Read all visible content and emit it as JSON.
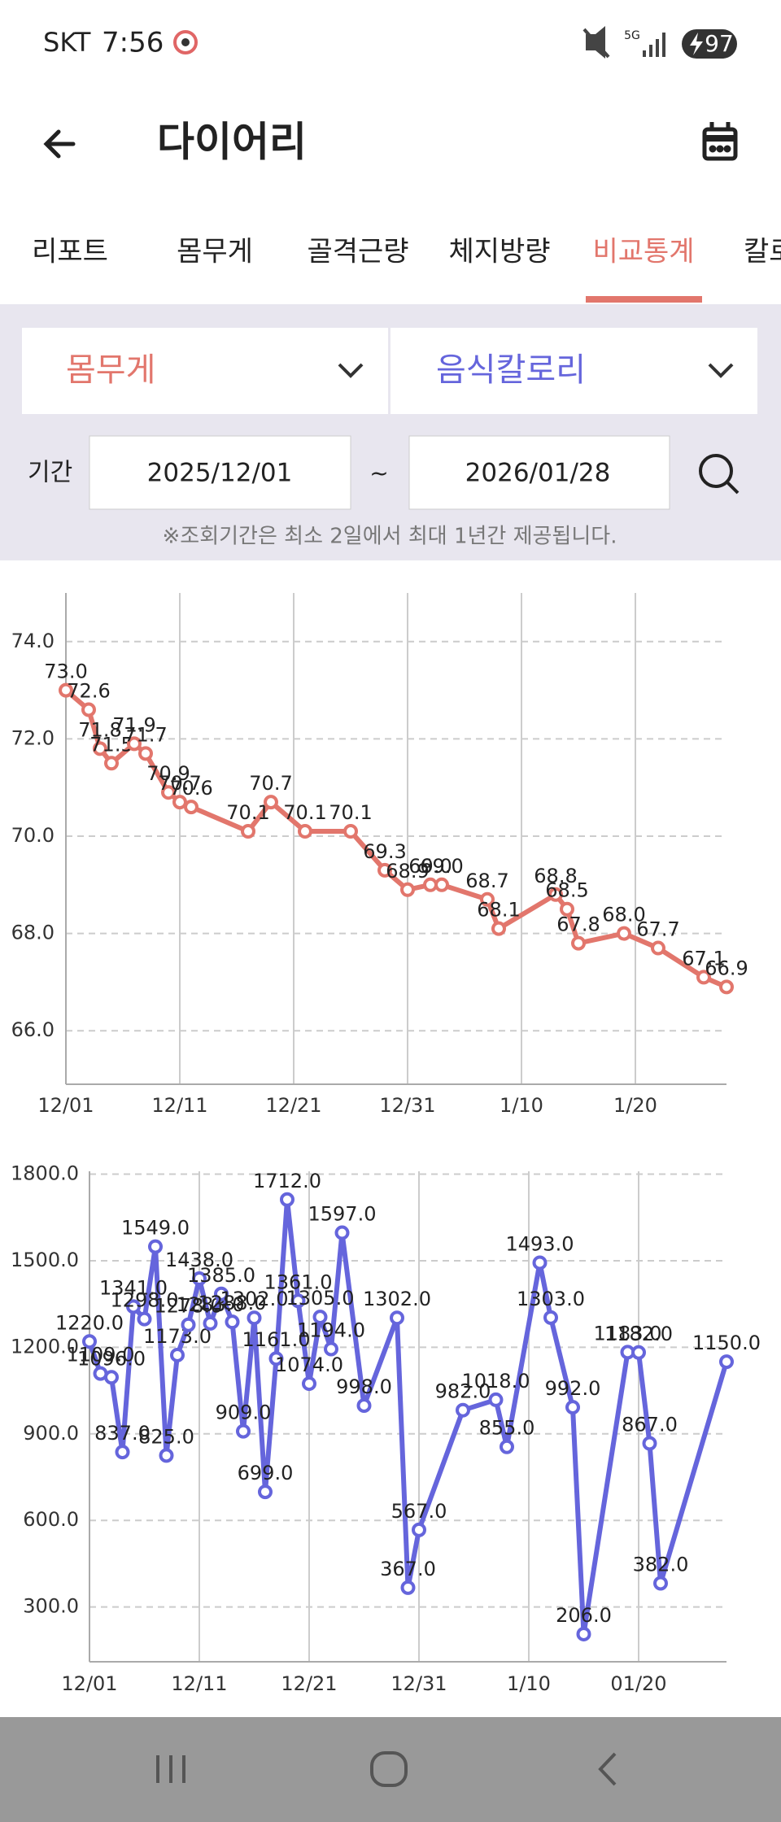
{
  "status_bar": {
    "carrier": "SKT",
    "time": "7:56",
    "battery": "97"
  },
  "header": {
    "title": "다이어리"
  },
  "tabs": [
    "리포트",
    "몸무게",
    "골격근량",
    "체지방량",
    "비교통계",
    "칼로리"
  ],
  "filters": {
    "left": "몸무게",
    "right": "음식칼로리",
    "period_label": "기간",
    "start": "2025/12/01",
    "separator": "~",
    "end": "2026/01/28",
    "note": "※조회기간은 최소 2일에서 최대 1년간 제공됩니다."
  },
  "chart_data": [
    {
      "type": "line",
      "color": "#e2766c",
      "grid": true,
      "x": [
        "12/01",
        "12/03",
        "12/04",
        "12/05",
        "12/07",
        "12/08",
        "12/10",
        "12/11",
        "12/12",
        "12/17",
        "12/19",
        "12/22",
        "12/26",
        "12/29",
        "12/31",
        "1/2",
        "1/3",
        "1/7",
        "1/8",
        "1/13",
        "1/14",
        "1/15",
        "1/19",
        "1/22",
        "1/26",
        "1/28"
      ],
      "values": [
        73.0,
        72.6,
        71.8,
        71.5,
        71.9,
        71.7,
        70.9,
        70.7,
        70.6,
        70.1,
        70.7,
        70.1,
        70.1,
        69.3,
        68.9,
        69.0,
        69.0,
        68.7,
        68.1,
        68.8,
        68.5,
        67.8,
        68.0,
        67.7,
        67.1,
        66.9
      ],
      "value_labels": [
        "73.0",
        "72.6",
        "71.8",
        "71.5",
        "71.9",
        "71.7",
        "70.9",
        "70.7",
        "70.6",
        "70.1",
        "70.7",
        "70.1",
        "70.1",
        "69.3",
        "68.9",
        "69.0",
        "69.0",
        "68.7",
        "68.1",
        "68.8",
        "68.5",
        "67.8",
        "68.0",
        "67.7",
        "67.1",
        "66.9"
      ],
      "xlim": [
        "12/01",
        "1/28"
      ],
      "xticks": [
        "12/01",
        "12/11",
        "12/21",
        "12/31",
        "1/10",
        "1/20"
      ],
      "ylim": [
        64.9,
        75.0
      ],
      "yticks": [
        {
          "value": 66,
          "label": "66.0"
        },
        {
          "value": 68,
          "label": "68.0"
        },
        {
          "value": 70,
          "label": "70.0"
        },
        {
          "value": 72,
          "label": "72.0"
        },
        {
          "value": 74,
          "label": "74.0"
        }
      ]
    },
    {
      "type": "line",
      "color": "#6565dc",
      "grid": true,
      "x": [
        "12/01",
        "12/02",
        "12/03",
        "12/04",
        "12/05",
        "12/06",
        "12/07",
        "12/08",
        "12/09",
        "12/10",
        "12/11",
        "12/12",
        "12/13",
        "12/14",
        "12/15",
        "12/16",
        "12/17",
        "12/18",
        "12/19",
        "12/20",
        "12/21",
        "12/22",
        "12/23",
        "12/24",
        "12/26",
        "12/29",
        "12/30",
        "12/31",
        "1/4",
        "1/7",
        "1/8",
        "1/11",
        "1/12",
        "1/14",
        "1/15",
        "1/19",
        "1/20",
        "1/21",
        "1/22",
        "1/28"
      ],
      "values": [
        1220,
        1109,
        1096,
        837,
        1341,
        1298,
        1549,
        825,
        1173,
        1278,
        1438,
        1283,
        1385,
        1288,
        909,
        1302,
        699,
        1161,
        1712,
        1361,
        1074,
        1305,
        1194,
        1597,
        998,
        1302,
        367,
        567,
        982,
        1018,
        855,
        1493,
        1303,
        992,
        206,
        1183,
        1182,
        867,
        382,
        1150
      ],
      "value_labels": [
        "1220.0",
        "1109.0",
        "1096.0",
        "837.0",
        "1341.0",
        "1298.0",
        "1549.0",
        "825.0",
        "1173.0",
        "1278.0",
        "1438.0",
        "1283.0",
        "1385.0",
        "1288.0",
        "909.0",
        "1302.0",
        "699.0",
        "1161.0",
        "1712.0",
        "1361.0",
        "1074.0",
        "1305.0",
        "1194.0",
        "1597.0",
        "998.0",
        "1302.0",
        "367.0",
        "567.0",
        "982.0",
        "1018.0",
        "855.0",
        "1493.0",
        "1303.0",
        "992.0",
        "206.0",
        "1183.0",
        "1182.0",
        "867.0",
        "382.0",
        "1150.0"
      ],
      "xlim": [
        "12/01",
        "1/28"
      ],
      "xticks": [
        "12/01",
        "12/11",
        "12/21",
        "12/31",
        "1/10",
        "01/20"
      ],
      "ylim": [
        110,
        1810
      ],
      "yticks": [
        {
          "value": 300,
          "label": "300.0"
        },
        {
          "value": 600,
          "label": "600.0"
        },
        {
          "value": 900,
          "label": "900.0"
        },
        {
          "value": 1200,
          "label": "1200.0"
        },
        {
          "value": 1500,
          "label": "1500.0"
        },
        {
          "value": 1800,
          "label": "1800.0"
        }
      ]
    }
  ]
}
